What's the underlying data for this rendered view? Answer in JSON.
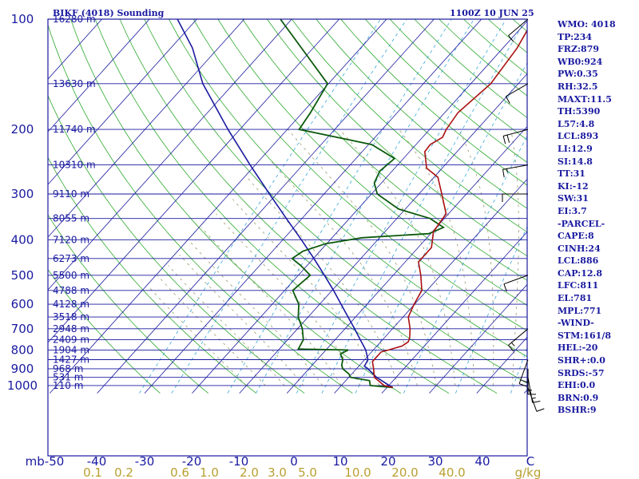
{
  "header": {
    "station": "BIKF (4018) Sounding",
    "time": "1100Z 10 JUN 25"
  },
  "colors": {
    "frame": "#1a1aa0",
    "isobar": "#1a1aa0",
    "isotherm": "#1a1aa0",
    "dry_adiabat": "#2eaa2e",
    "mixing_ratio": "#3aa8d8",
    "moist_adiabat": "#9a9a70",
    "temperature": "#aa1010",
    "dewpoint": "#0d5a0d",
    "parcel": "#1a1aa0",
    "mixing_label": "#b8a030",
    "wind_barb": "#000000"
  },
  "stats": [
    "WMO: 4018",
    "TP:234",
    "FRZ:879",
    "WB0:924",
    "PW:0.35",
    "RH:32.5",
    "MAXT:11.5",
    "TH:5390",
    "L57:4.8",
    "LCL:893",
    "LI:12.9",
    "SI:14.8",
    "TT:31",
    "KI:-12",
    "SW:31",
    "EI:3.7",
    "-PARCEL-",
    "CAPE:8",
    "CINH:24",
    "LCL:886",
    "CAP:12.8",
    "LFC:811",
    "EL:781",
    "MPL:771",
    "-WIND-",
    "STM:161/8",
    "HEL:-20",
    "SHR+:0.0",
    "SRDS:-57",
    "EHI:0.0",
    "BRN:0.9",
    "BSHR:9"
  ],
  "chart_data": {
    "type": "skew-t log-p sounding",
    "pressure_axis": {
      "unit": "mb",
      "ticks": [
        100,
        200,
        300,
        400,
        500,
        600,
        700,
        800,
        900,
        1000
      ]
    },
    "temperature_axis": {
      "unit": "C",
      "ticks": [
        -50,
        -40,
        -30,
        -20,
        -10,
        0,
        10,
        20,
        30,
        40
      ],
      "tick_labels": [
        "mb-50",
        "-40",
        "-30",
        "-20",
        "-10",
        "0",
        "10",
        "20",
        "30",
        "40",
        "C"
      ]
    },
    "mixing_ratio_axis": {
      "unit": "g/kg",
      "ticks": [
        0.1,
        0.2,
        0.6,
        1.0,
        2.0,
        3.0,
        5.0,
        10.0,
        20.0,
        40.0
      ],
      "tick_labels": [
        "0.1",
        "0.2",
        "0.6",
        "1.0",
        "2.0",
        "3.0",
        "5.0",
        "10.0",
        "20.0",
        "40.0",
        "g/kg"
      ]
    },
    "heights_m": [
      {
        "p": 100,
        "h": "16280 m"
      },
      {
        "p": 150,
        "h": "13630 m"
      },
      {
        "p": 200,
        "h": "11740 m"
      },
      {
        "p": 250,
        "h": "10310 m"
      },
      {
        "p": 300,
        "h": "9110 m"
      },
      {
        "p": 350,
        "h": "8055 m"
      },
      {
        "p": 400,
        "h": "7120 m"
      },
      {
        "p": 450,
        "h": "6273 m"
      },
      {
        "p": 500,
        "h": "5500 m"
      },
      {
        "p": 550,
        "h": "4788 m"
      },
      {
        "p": 600,
        "h": "4128 m"
      },
      {
        "p": 650,
        "h": "3518 m"
      },
      {
        "p": 700,
        "h": "2948 m"
      },
      {
        "p": 750,
        "h": "2409 m"
      },
      {
        "p": 800,
        "h": "1904 m"
      },
      {
        "p": 850,
        "h": "1427 m"
      },
      {
        "p": 900,
        "h": "968 m"
      },
      {
        "p": 950,
        "h": "531 m"
      },
      {
        "p": 1000,
        "h": "110 m"
      }
    ],
    "temperature_c": [
      [
        1012,
        11.2
      ],
      [
        1000,
        9.0
      ],
      [
        950,
        5.4
      ],
      [
        900,
        3.6
      ],
      [
        860,
        2.0
      ],
      [
        840,
        2.0
      ],
      [
        810,
        2.0
      ],
      [
        800,
        3.2
      ],
      [
        780,
        5.3
      ],
      [
        760,
        5.8
      ],
      [
        740,
        5.3
      ],
      [
        700,
        3.7
      ],
      [
        650,
        1.1
      ],
      [
        600,
        -0.1
      ],
      [
        550,
        -1.1
      ],
      [
        500,
        -4.2
      ],
      [
        460,
        -7.2
      ],
      [
        420,
        -7.2
      ],
      [
        380,
        -9.8
      ],
      [
        340,
        -10.5
      ],
      [
        300,
        -15.2
      ],
      [
        270,
        -19.2
      ],
      [
        255,
        -23.3
      ],
      [
        230,
        -26.8
      ],
      [
        220,
        -27.0
      ],
      [
        210,
        -25.8
      ],
      [
        200,
        -26.5
      ],
      [
        180,
        -27.2
      ],
      [
        150,
        -25.8
      ],
      [
        120,
        -27.0
      ],
      [
        100,
        -29.0
      ]
    ],
    "dewpoint_c": [
      [
        1012,
        11.2
      ],
      [
        1000,
        6.1
      ],
      [
        970,
        5.0
      ],
      [
        950,
        0.4
      ],
      [
        930,
        -0.6
      ],
      [
        900,
        -2.9
      ],
      [
        880,
        -3.8
      ],
      [
        850,
        -4.6
      ],
      [
        820,
        -6.2
      ],
      [
        800,
        -5.3
      ],
      [
        795,
        -16.0
      ],
      [
        750,
        -16.7
      ],
      [
        700,
        -19.0
      ],
      [
        650,
        -22.1
      ],
      [
        600,
        -24.4
      ],
      [
        550,
        -28.3
      ],
      [
        500,
        -27.5
      ],
      [
        470,
        -31.4
      ],
      [
        450,
        -34.5
      ],
      [
        430,
        -33.6
      ],
      [
        410,
        -30.2
      ],
      [
        395,
        -23.7
      ],
      [
        385,
        -10.4
      ],
      [
        370,
        -8.5
      ],
      [
        350,
        -13.0
      ],
      [
        330,
        -21.4
      ],
      [
        300,
        -28.8
      ],
      [
        280,
        -31.5
      ],
      [
        260,
        -32.6
      ],
      [
        240,
        -31.9
      ],
      [
        220,
        -39.3
      ],
      [
        200,
        -57.5
      ],
      [
        180,
        -58.3
      ],
      [
        150,
        -60.2
      ],
      [
        100,
        -82.4
      ]
    ],
    "parcel_c": [
      [
        1012,
        11.2
      ],
      [
        1000,
        10.1
      ],
      [
        950,
        5.9
      ],
      [
        900,
        2.4
      ],
      [
        886,
        1.2
      ],
      [
        850,
        0.7
      ],
      [
        800,
        -1.6
      ],
      [
        750,
        -4.7
      ],
      [
        700,
        -8.0
      ],
      [
        650,
        -11.6
      ],
      [
        600,
        -15.5
      ],
      [
        550,
        -19.7
      ],
      [
        500,
        -24.5
      ],
      [
        450,
        -29.9
      ],
      [
        400,
        -36.1
      ],
      [
        350,
        -43.3
      ],
      [
        300,
        -51.5
      ],
      [
        250,
        -61.1
      ],
      [
        200,
        -72.5
      ],
      [
        150,
        -86.5
      ],
      [
        120,
        -95.4
      ],
      [
        100,
        -104.1
      ]
    ],
    "wind_barbs": [
      {
        "p": 1012,
        "dir": 160,
        "kt": 10
      },
      {
        "p": 950,
        "dir": 170,
        "kt": 15
      },
      {
        "p": 900,
        "dir": 180,
        "kt": 15
      },
      {
        "p": 850,
        "dir": 200,
        "kt": 20
      },
      {
        "p": 700,
        "dir": 230,
        "kt": 15
      },
      {
        "p": 500,
        "dir": 250,
        "kt": 10
      },
      {
        "p": 300,
        "dir": 270,
        "kt": 10
      },
      {
        "p": 250,
        "dir": 260,
        "kt": 15
      },
      {
        "p": 200,
        "dir": 255,
        "kt": 20
      },
      {
        "p": 150,
        "dir": 240,
        "kt": 10
      },
      {
        "p": 100,
        "dir": 230,
        "kt": 10
      }
    ]
  }
}
